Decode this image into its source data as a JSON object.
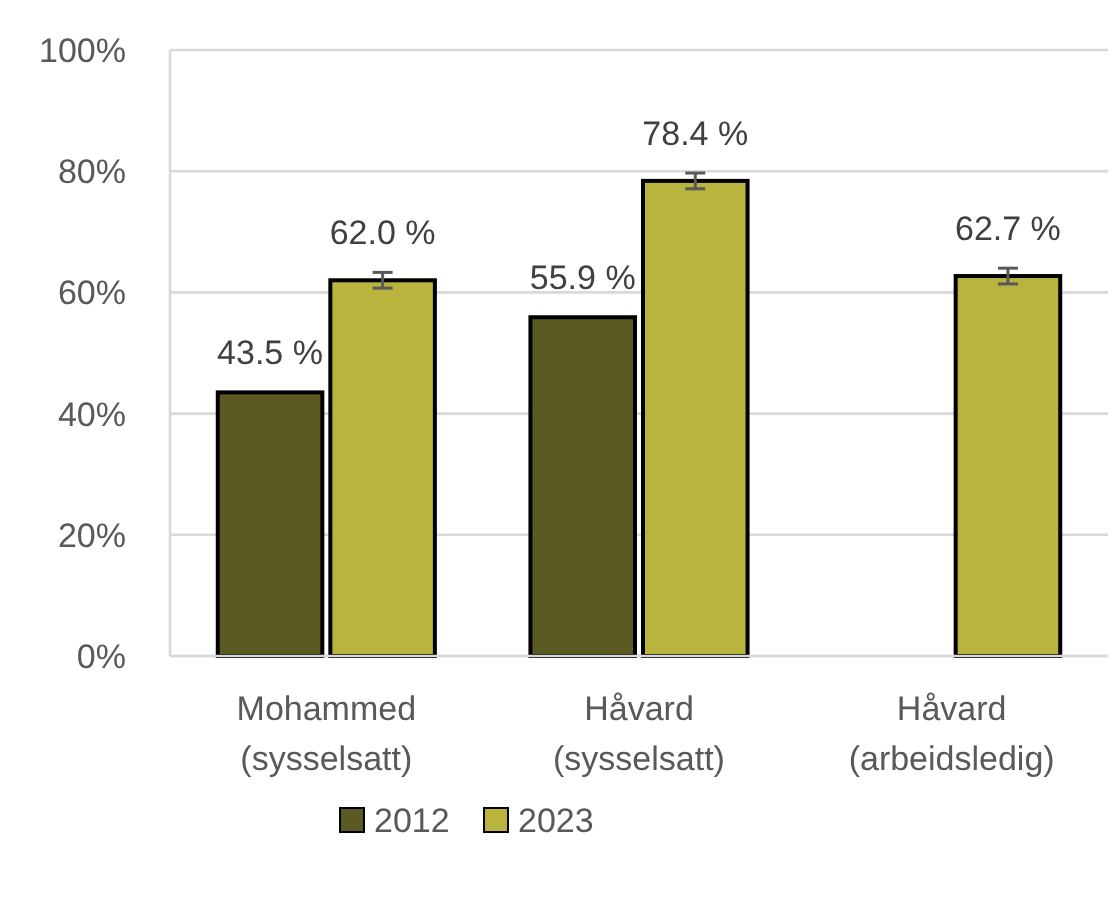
{
  "chart_data": {
    "type": "bar",
    "categories": [
      "Mohammed (sysselsatt)",
      "Håvard (sysselsatt)",
      "Håvard (arbeidsledig)"
    ],
    "series": [
      {
        "name": "2012",
        "color": "#5b5a22",
        "values": [
          43.5,
          55.9,
          null
        ],
        "value_labels": [
          "43.5 %",
          "55.9 %",
          null
        ]
      },
      {
        "name": "2023",
        "color": "#b8b43e",
        "values": [
          62.0,
          78.4,
          62.7
        ],
        "value_labels": [
          "62.0 %",
          "78.4 %",
          "62.7 %"
        ],
        "errors": [
          1.3,
          1.3,
          1.3
        ]
      }
    ],
    "ylim": [
      0,
      100
    ],
    "yticks": [
      {
        "value": 0,
        "label": "0%"
      },
      {
        "value": 20,
        "label": "20%"
      },
      {
        "value": 40,
        "label": "40%"
      },
      {
        "value": 60,
        "label": "60%"
      },
      {
        "value": 80,
        "label": "80%"
      },
      {
        "value": 100,
        "label": "100%"
      }
    ],
    "grid": "y",
    "legend": "bottom"
  }
}
